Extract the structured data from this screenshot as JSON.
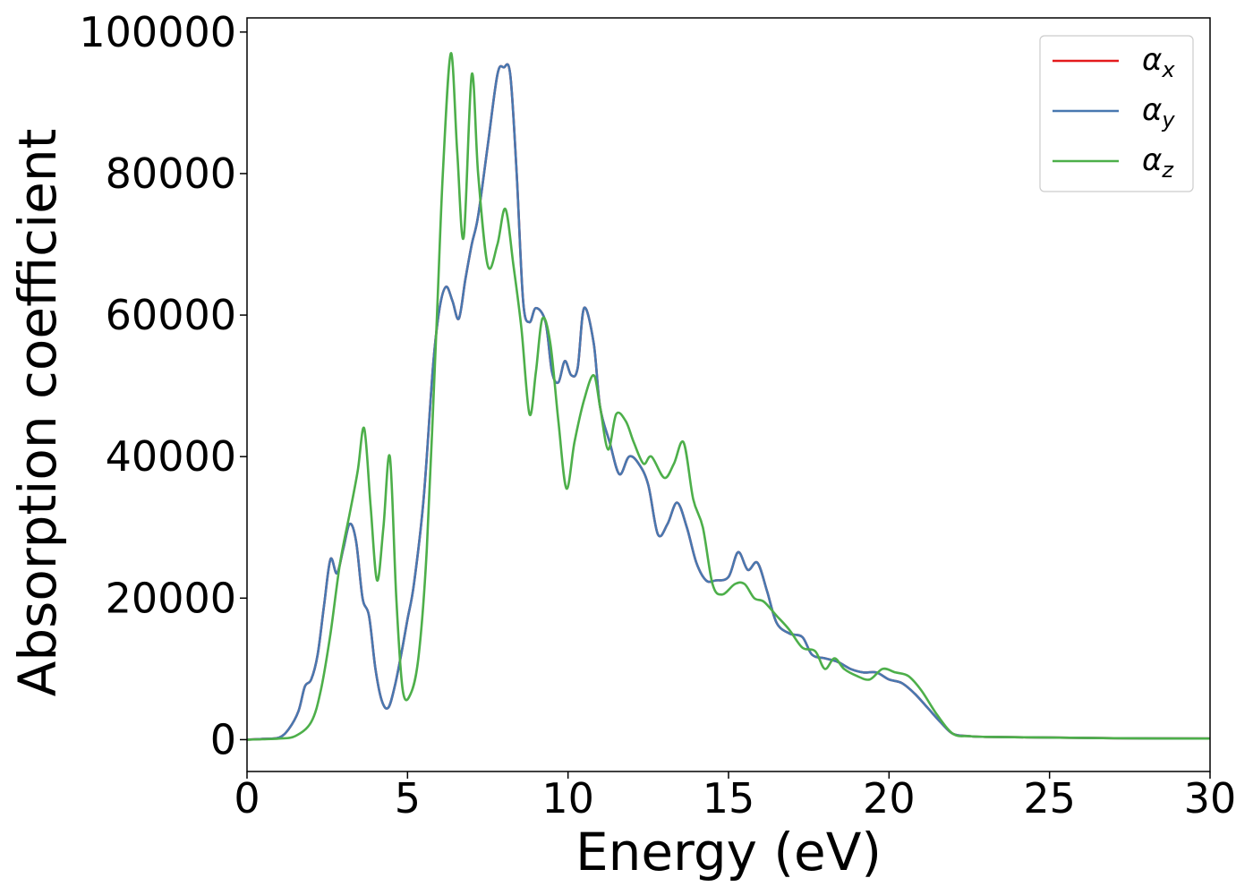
{
  "chart_data": {
    "type": "line",
    "title": "",
    "xlabel": "Energy (eV)",
    "ylabel": "Absorption coefficient",
    "xlim": [
      0,
      30
    ],
    "ylim": [
      -4500,
      102000
    ],
    "xticks": [
      0,
      5,
      10,
      15,
      20,
      25,
      30
    ],
    "yticks": [
      0,
      20000,
      40000,
      60000,
      80000,
      100000
    ],
    "grid": false,
    "legend_position": "top-right",
    "series": [
      {
        "name": "α_x",
        "label_main": "α",
        "label_sub": "x",
        "color": "#e41a1c",
        "x": [
          0,
          0.5,
          1.0,
          1.3,
          1.6,
          1.8,
          2.0,
          2.2,
          2.4,
          2.6,
          2.8,
          3.0,
          3.2,
          3.4,
          3.6,
          3.8,
          4.0,
          4.2,
          4.4,
          4.6,
          4.8,
          5.0,
          5.2,
          5.5,
          5.8,
          6.0,
          6.2,
          6.4,
          6.6,
          6.8,
          7.0,
          7.2,
          7.5,
          7.8,
          8.0,
          8.2,
          8.4,
          8.6,
          8.8,
          9.0,
          9.3,
          9.5,
          9.7,
          9.9,
          10.1,
          10.3,
          10.5,
          10.8,
          11.0,
          11.3,
          11.6,
          11.9,
          12.2,
          12.5,
          12.8,
          13.1,
          13.4,
          13.7,
          14.0,
          14.3,
          14.6,
          15.0,
          15.3,
          15.6,
          15.9,
          16.2,
          16.5,
          16.9,
          17.3,
          17.6,
          18.0,
          18.4,
          18.8,
          19.2,
          19.6,
          20.0,
          20.4,
          20.8,
          21.2,
          21.6,
          22.0,
          22.5,
          23,
          25,
          27,
          30
        ],
        "y": [
          0,
          100,
          300,
          1500,
          4000,
          7500,
          8500,
          12000,
          19000,
          25500,
          23500,
          27000,
          30500,
          28000,
          20000,
          17500,
          10000,
          5500,
          4500,
          7500,
          12000,
          17000,
          22000,
          34000,
          53000,
          61000,
          64000,
          62000,
          59500,
          65000,
          70000,
          74000,
          84000,
          94000,
          95000,
          94000,
          80000,
          62000,
          59000,
          61000,
          59000,
          52000,
          50500,
          53500,
          51500,
          52500,
          61000,
          56000,
          47000,
          42000,
          37500,
          40000,
          39000,
          36000,
          29000,
          30500,
          33500,
          30000,
          25000,
          22500,
          22500,
          23000,
          26500,
          24000,
          25000,
          21000,
          16500,
          15000,
          14500,
          12000,
          11500,
          11000,
          10000,
          9500,
          9500,
          8500,
          8000,
          6500,
          4500,
          2500,
          800,
          500,
          400,
          300,
          200,
          150
        ]
      },
      {
        "name": "α_y",
        "label_main": "α",
        "label_sub": "y",
        "color": "#4878b0",
        "x": [
          0,
          0.5,
          1.0,
          1.3,
          1.6,
          1.8,
          2.0,
          2.2,
          2.4,
          2.6,
          2.8,
          3.0,
          3.2,
          3.4,
          3.6,
          3.8,
          4.0,
          4.2,
          4.4,
          4.6,
          4.8,
          5.0,
          5.2,
          5.5,
          5.8,
          6.0,
          6.2,
          6.4,
          6.6,
          6.8,
          7.0,
          7.2,
          7.5,
          7.8,
          8.0,
          8.2,
          8.4,
          8.6,
          8.8,
          9.0,
          9.3,
          9.5,
          9.7,
          9.9,
          10.1,
          10.3,
          10.5,
          10.8,
          11.0,
          11.3,
          11.6,
          11.9,
          12.2,
          12.5,
          12.8,
          13.1,
          13.4,
          13.7,
          14.0,
          14.3,
          14.6,
          15.0,
          15.3,
          15.6,
          15.9,
          16.2,
          16.5,
          16.9,
          17.3,
          17.6,
          18.0,
          18.4,
          18.8,
          19.2,
          19.6,
          20.0,
          20.4,
          20.8,
          21.2,
          21.6,
          22.0,
          22.5,
          23,
          25,
          27,
          30
        ],
        "y": [
          0,
          100,
          300,
          1500,
          4000,
          7500,
          8500,
          12000,
          19000,
          25500,
          23500,
          27000,
          30500,
          28000,
          20000,
          17500,
          10000,
          5500,
          4500,
          7500,
          12000,
          17000,
          22000,
          34000,
          53000,
          61000,
          64000,
          62000,
          59500,
          65000,
          70000,
          74000,
          84000,
          94000,
          95000,
          94000,
          80000,
          62000,
          59000,
          61000,
          59000,
          52000,
          50500,
          53500,
          51500,
          52500,
          61000,
          56000,
          47000,
          42000,
          37500,
          40000,
          39000,
          36000,
          29000,
          30500,
          33500,
          30000,
          25000,
          22500,
          22500,
          23000,
          26500,
          24000,
          25000,
          21000,
          16500,
          15000,
          14500,
          12000,
          11500,
          11000,
          10000,
          9500,
          9500,
          8500,
          8000,
          6500,
          4500,
          2500,
          800,
          500,
          400,
          300,
          200,
          150
        ]
      },
      {
        "name": "α_z",
        "label_main": "α",
        "label_sub": "z",
        "color": "#4daf4a",
        "x": [
          0,
          0.5,
          1.0,
          1.5,
          2.0,
          2.3,
          2.6,
          2.9,
          3.2,
          3.45,
          3.65,
          3.85,
          4.05,
          4.25,
          4.45,
          4.65,
          4.85,
          5.1,
          5.35,
          5.6,
          5.9,
          6.1,
          6.35,
          6.55,
          6.75,
          7.0,
          7.2,
          7.5,
          7.8,
          8.05,
          8.3,
          8.55,
          8.8,
          9.0,
          9.2,
          9.45,
          9.7,
          9.95,
          10.2,
          10.5,
          10.8,
          11.0,
          11.25,
          11.5,
          11.8,
          12.05,
          12.35,
          12.6,
          13.0,
          13.3,
          13.6,
          13.9,
          14.2,
          14.5,
          14.8,
          15.2,
          15.5,
          15.8,
          16.1,
          16.5,
          16.9,
          17.3,
          17.7,
          18.0,
          18.3,
          18.6,
          19.0,
          19.4,
          19.8,
          20.2,
          20.6,
          21.0,
          21.5,
          22.0,
          22.5,
          23,
          25,
          27,
          30
        ],
        "y": [
          0,
          50,
          150,
          500,
          2500,
          7000,
          15000,
          25000,
          32000,
          38000,
          44000,
          33000,
          22500,
          30000,
          40000,
          20000,
          7000,
          6500,
          12000,
          27000,
          58000,
          80000,
          97000,
          83000,
          71000,
          94000,
          80000,
          67000,
          70000,
          75000,
          67000,
          58000,
          46000,
          52000,
          59500,
          56000,
          45000,
          35500,
          42000,
          48000,
          51500,
          47000,
          41000,
          46000,
          45000,
          42000,
          39000,
          40000,
          37000,
          39000,
          42000,
          34000,
          30000,
          22000,
          20500,
          22000,
          22000,
          20000,
          19500,
          17500,
          15500,
          13000,
          12500,
          10000,
          11500,
          10000,
          9000,
          8500,
          10000,
          9500,
          9000,
          7000,
          3500,
          800,
          500,
          400,
          300,
          200,
          150
        ]
      }
    ]
  }
}
